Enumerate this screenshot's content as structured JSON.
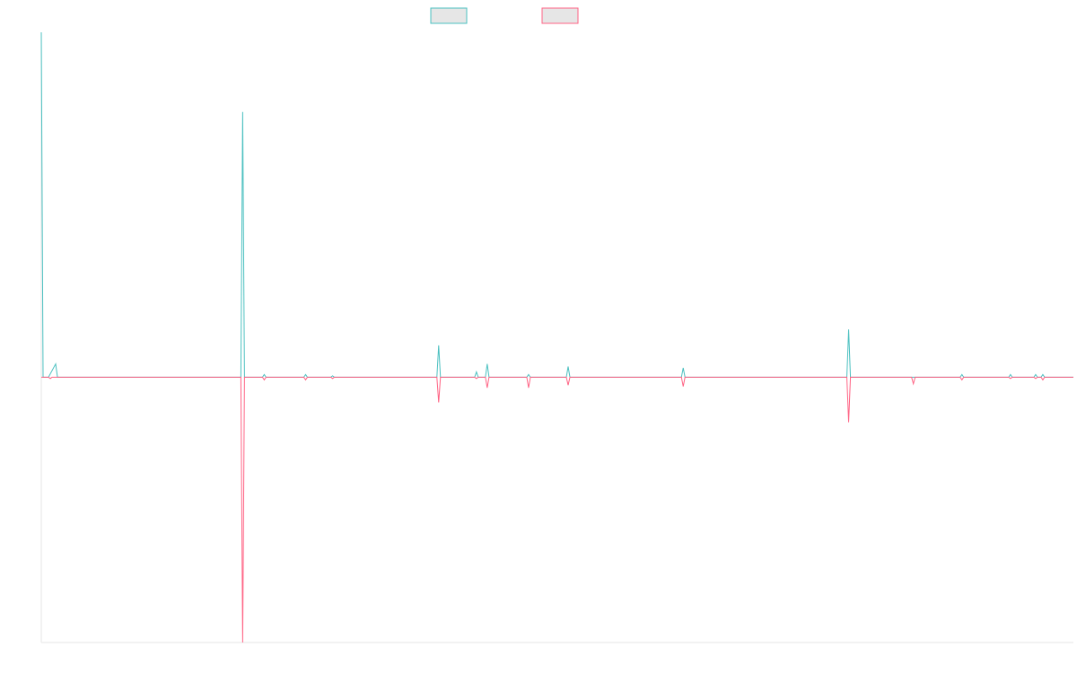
{
  "chart_data": {
    "type": "line",
    "title": "",
    "xlabel": "",
    "ylabel": "",
    "grid": false,
    "legend_position": "top-center",
    "ylim": [
      -100,
      130
    ],
    "x": [
      0,
      1,
      2,
      3,
      4,
      5,
      6,
      7,
      8,
      9,
      10,
      11,
      12,
      13,
      14,
      15,
      16,
      17,
      18,
      19,
      20,
      21,
      22,
      23,
      24,
      25,
      26,
      27,
      28,
      29,
      30,
      31,
      32,
      33,
      34,
      35,
      36,
      37,
      38,
      39,
      40,
      41,
      42,
      43,
      44,
      45,
      46,
      47,
      48,
      49,
      50,
      51,
      52,
      53,
      54,
      55,
      56,
      57,
      58,
      59,
      60,
      61,
      62,
      63,
      64,
      65,
      66,
      67,
      68,
      69,
      70,
      71,
      72,
      73,
      74,
      75,
      76,
      77,
      78,
      79,
      80,
      81,
      82,
      83,
      84,
      85,
      86,
      87,
      88,
      89,
      90,
      91,
      92,
      93,
      94,
      95,
      96,
      97,
      98,
      99,
      100,
      101,
      102,
      103,
      104,
      105,
      106,
      107,
      108,
      109,
      110,
      111,
      112,
      113,
      114,
      115,
      116,
      117,
      118,
      119,
      120,
      121,
      122,
      123,
      124,
      125,
      126,
      127,
      128,
      129,
      130,
      131,
      132,
      133,
      134,
      135,
      136,
      137,
      138,
      139,
      140,
      141,
      142,
      143,
      144,
      145,
      146,
      147,
      148,
      149,
      150,
      151,
      152,
      153,
      154,
      155,
      156,
      157,
      158,
      159,
      160,
      161,
      162,
      163,
      164,
      165,
      166,
      167,
      168,
      169,
      170,
      171,
      172,
      173,
      174,
      175,
      176,
      177,
      178,
      179,
      180,
      181,
      182,
      183,
      184,
      185,
      186,
      187,
      188,
      189,
      190,
      191,
      192,
      193,
      194,
      195,
      196,
      197,
      198,
      199,
      200,
      201,
      202,
      203,
      204,
      205,
      206,
      207,
      208,
      209,
      210,
      211,
      212,
      213,
      214,
      215,
      216,
      217,
      218,
      219,
      220,
      221,
      222,
      223,
      224,
      225,
      226,
      227,
      228,
      229,
      230,
      231,
      232,
      233,
      234,
      235,
      236,
      237,
      238,
      239,
      240,
      241,
      242,
      243,
      244,
      245,
      246,
      247,
      248,
      249,
      250,
      251,
      252,
      253,
      254,
      255,
      256,
      257,
      258,
      259,
      260,
      261,
      262,
      263,
      264,
      265,
      266,
      267,
      268,
      269,
      270,
      271,
      272,
      273,
      274,
      275,
      276,
      277,
      278,
      279,
      280,
      281,
      282,
      283,
      284,
      285,
      286,
      287,
      288,
      289,
      290,
      291,
      292,
      293,
      294,
      295,
      296,
      297,
      298,
      299,
      300,
      301,
      302,
      303,
      304,
      305,
      306,
      307,
      308,
      309,
      310,
      311,
      312,
      313,
      314,
      315,
      316,
      317,
      318,
      319,
      320,
      321,
      322,
      323,
      324,
      325,
      326,
      327,
      328,
      329,
      330,
      331,
      332,
      333,
      334,
      335,
      336,
      337,
      338,
      339,
      340,
      341,
      342,
      343,
      344,
      345,
      346,
      347,
      348,
      349,
      350,
      351,
      352,
      353,
      354,
      355,
      356,
      357,
      358,
      359,
      360,
      361,
      362,
      363,
      364,
      365,
      366,
      367,
      368,
      369,
      370,
      371,
      372,
      373,
      374,
      375,
      376,
      377,
      378,
      379,
      380,
      381,
      382,
      383,
      384,
      385,
      386,
      387,
      388,
      389,
      390,
      391,
      392,
      393,
      394,
      395,
      396,
      397,
      398,
      399,
      400,
      401,
      402,
      403,
      404,
      405,
      406,
      407,
      408,
      409,
      410,
      411,
      412,
      413,
      414,
      415,
      416,
      417,
      418,
      419,
      420,
      421,
      422,
      423,
      424,
      425,
      426,
      427,
      428,
      429,
      430,
      431,
      432,
      433,
      434,
      435,
      436,
      437,
      438,
      439,
      440,
      441,
      442,
      443,
      444,
      445,
      446,
      447,
      448,
      449,
      450,
      451,
      452,
      453,
      454,
      455,
      456,
      457,
      458,
      459,
      460,
      461,
      462,
      463,
      464,
      465,
      466,
      467,
      468,
      469,
      470,
      471,
      472,
      473,
      474,
      475,
      476,
      477,
      478,
      479,
      480,
      481,
      482,
      483,
      484,
      485,
      486,
      487,
      488,
      489,
      490,
      491,
      492,
      493,
      494,
      495,
      496,
      497,
      498,
      499,
      500,
      501,
      502,
      503,
      504,
      505,
      506,
      507,
      508,
      509,
      510,
      511,
      512,
      513,
      514,
      515,
      516,
      517,
      518,
      519,
      520,
      521,
      522,
      523,
      524,
      525,
      526,
      527,
      528,
      529,
      530,
      531,
      532,
      533,
      534,
      535,
      536,
      537,
      538,
      539,
      540,
      541,
      542,
      543,
      544,
      545,
      546,
      547,
      548,
      549,
      550,
      551,
      552,
      553,
      554,
      555,
      556,
      557,
      558,
      559,
      560,
      561,
      562,
      563,
      564,
      565,
      566,
      567,
      568,
      569,
      570,
      571,
      572,
      573,
      574
    ],
    "series": [
      {
        "name": "",
        "color": "#4bc0c0",
        "points": [
          [
            0,
            130
          ],
          [
            1,
            0
          ],
          [
            4,
            0
          ],
          [
            8,
            5
          ],
          [
            9,
            0
          ],
          [
            111,
            0
          ],
          [
            112,
            100
          ],
          [
            113,
            0
          ],
          [
            123,
            0
          ],
          [
            124,
            1
          ],
          [
            125,
            0
          ],
          [
            146,
            0
          ],
          [
            147,
            1
          ],
          [
            148,
            0
          ],
          [
            161,
            0
          ],
          [
            162,
            0.5
          ],
          [
            163,
            0
          ],
          [
            220,
            0
          ],
          [
            221,
            12
          ],
          [
            222,
            0
          ],
          [
            241,
            0
          ],
          [
            242,
            2
          ],
          [
            243,
            0
          ],
          [
            247,
            0
          ],
          [
            248,
            5
          ],
          [
            249,
            0
          ],
          [
            270,
            0
          ],
          [
            271,
            1
          ],
          [
            272,
            0
          ],
          [
            292,
            0
          ],
          [
            293,
            4
          ],
          [
            294,
            0
          ],
          [
            356,
            0
          ],
          [
            357,
            3.5
          ],
          [
            358,
            0
          ],
          [
            448,
            0
          ],
          [
            449,
            18
          ],
          [
            450,
            0
          ],
          [
            484,
            0
          ],
          [
            485,
            0
          ],
          [
            511,
            0
          ],
          [
            512,
            1
          ],
          [
            513,
            0
          ],
          [
            538,
            0
          ],
          [
            539,
            1
          ],
          [
            540,
            0
          ],
          [
            552,
            0
          ],
          [
            553,
            1
          ],
          [
            554,
            0
          ],
          [
            556,
            0
          ],
          [
            557,
            1
          ],
          [
            558,
            0
          ],
          [
            574,
            0
          ]
        ]
      },
      {
        "name": "",
        "color": "#ff6384",
        "points": [
          [
            0,
            0
          ],
          [
            4,
            0
          ],
          [
            5,
            -0.5
          ],
          [
            6,
            0
          ],
          [
            111,
            0
          ],
          [
            112,
            -100
          ],
          [
            113,
            0
          ],
          [
            123,
            0
          ],
          [
            124,
            -1
          ],
          [
            125,
            0
          ],
          [
            146,
            0
          ],
          [
            147,
            -1
          ],
          [
            148,
            0
          ],
          [
            161,
            0
          ],
          [
            162,
            -0.5
          ],
          [
            163,
            0
          ],
          [
            220,
            0
          ],
          [
            221,
            -9.5
          ],
          [
            222,
            0
          ],
          [
            241,
            0
          ],
          [
            242,
            -0.5
          ],
          [
            243,
            0
          ],
          [
            247,
            0
          ],
          [
            248,
            -4
          ],
          [
            249,
            0
          ],
          [
            270,
            0
          ],
          [
            271,
            -4
          ],
          [
            272,
            0
          ],
          [
            292,
            0
          ],
          [
            293,
            -3
          ],
          [
            294,
            0
          ],
          [
            356,
            0
          ],
          [
            357,
            -3.5
          ],
          [
            358,
            0
          ],
          [
            448,
            0
          ],
          [
            449,
            -17
          ],
          [
            450,
            0
          ],
          [
            484,
            0
          ],
          [
            485,
            -2.5
          ],
          [
            486,
            0
          ],
          [
            511,
            0
          ],
          [
            512,
            -1
          ],
          [
            513,
            0
          ],
          [
            538,
            0
          ],
          [
            539,
            -0.5
          ],
          [
            540,
            0
          ],
          [
            552,
            0
          ],
          [
            553,
            -0.5
          ],
          [
            554,
            0
          ],
          [
            556,
            0
          ],
          [
            557,
            -1
          ],
          [
            558,
            0
          ],
          [
            574,
            0
          ]
        ]
      }
    ]
  }
}
